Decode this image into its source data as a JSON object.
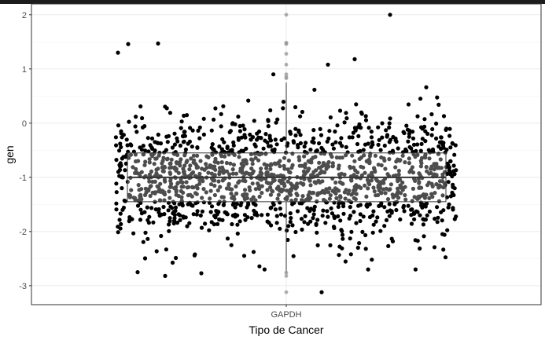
{
  "chart_data": {
    "type": "scatter",
    "overlay": "boxplot",
    "title": "",
    "xlabel": "Tipo de Cancer",
    "ylabel": "gen",
    "categories": [
      "GAPDH"
    ],
    "ylim": [
      -3.35,
      2.2
    ],
    "y_ticks": [
      -3,
      -2,
      -1,
      0,
      1,
      2
    ],
    "grid": true,
    "theme": "bw",
    "point_color": "#000000",
    "box": {
      "category": "GAPDH",
      "whisker_low": -2.78,
      "q1": -1.45,
      "median": -1.0,
      "q3": -0.55,
      "whisker_high": 0.75,
      "outliers": [
        -3.12,
        -2.82,
        -2.76,
        1.48,
        1.46,
        1.48,
        1.28,
        1.08,
        0.9,
        0.85,
        0.83,
        2.0
      ],
      "fill": "#ffffff",
      "fill_opacity": 0.3
    },
    "series": [
      {
        "category": "GAPDH",
        "n_points": 1500,
        "center": -1.0,
        "spread_sd": 0.55,
        "notable_values": [
          1.3,
          1.46,
          1.47,
          2.0,
          1.18,
          1.08,
          -2.75,
          -2.82,
          -2.77,
          -3.12
        ]
      }
    ]
  }
}
